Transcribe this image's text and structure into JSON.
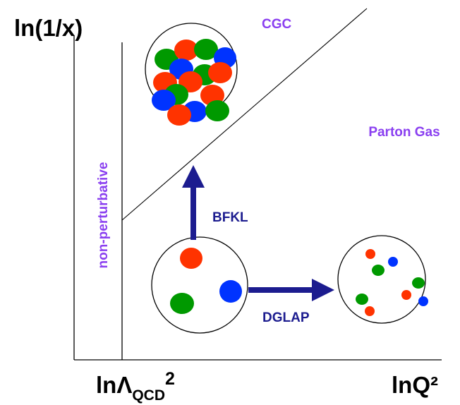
{
  "axes": {
    "y_label": "ln(1/x)",
    "x_label": "lnQ²",
    "x_marker": {
      "prefix": "lnΛ",
      "subscript": "QCD",
      "superscript": "2"
    }
  },
  "regions": {
    "saturation": "CGC",
    "dilute": "Parton Gas",
    "nonperturbative": "non-perturbative"
  },
  "evolution": {
    "vertical": "BFKL",
    "horizontal": "DGLAP"
  }
}
